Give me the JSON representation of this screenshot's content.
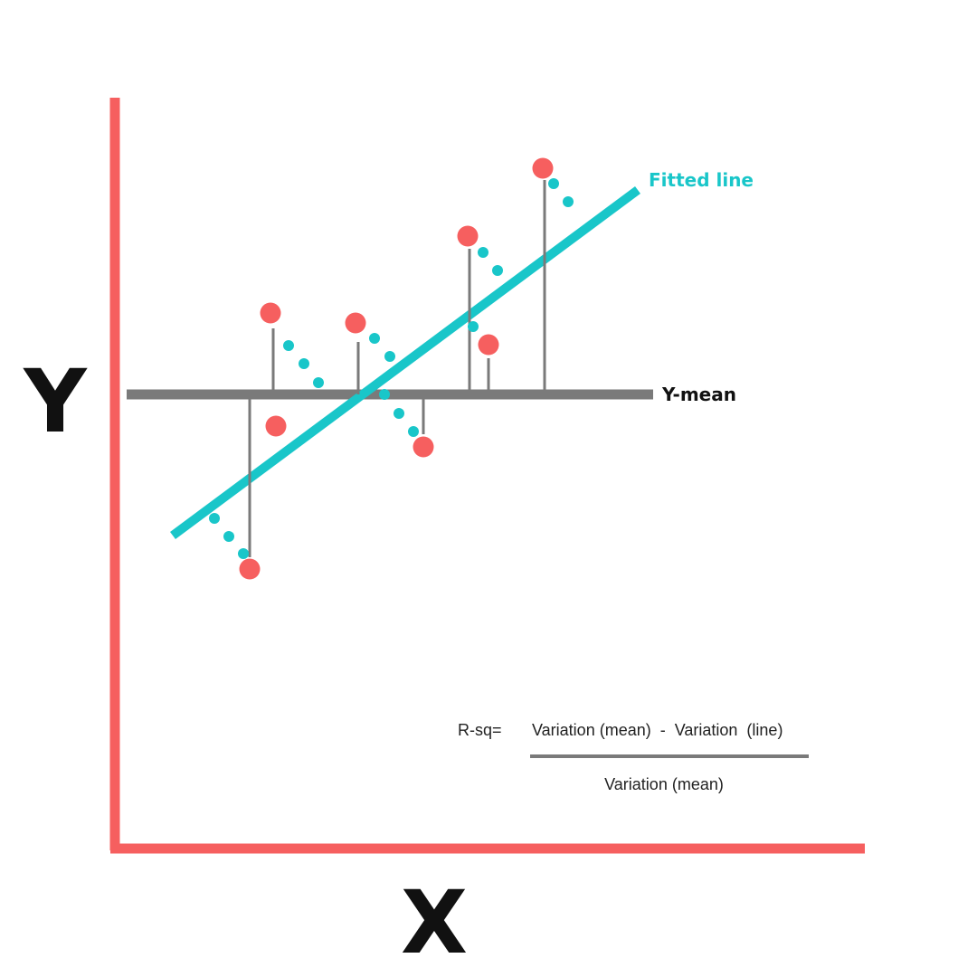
{
  "axes": {
    "x_label": "X",
    "y_label": "Y",
    "color": "#f65f5f"
  },
  "mean_line": {
    "label": "Y-mean",
    "color": "#7a7a7a",
    "label_color": "#111111"
  },
  "fitted_line": {
    "label": "Fitted line",
    "color": "#19c6c9"
  },
  "points": {
    "color": "#f65f5f"
  },
  "formula": {
    "prefix": "R-sq=",
    "numerator": "Variation (mean)  -  Variation  (line)",
    "denominator": "Variation (mean)",
    "text_color": "#222222",
    "bar_color": "#7a7a7a"
  }
}
